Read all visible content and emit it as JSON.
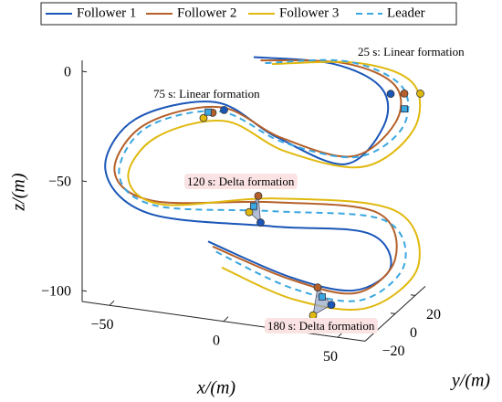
{
  "chart_data": {
    "type": "line",
    "xlabel": "x/(m)",
    "ylabel": "y/(m)",
    "zlabel": "z/(m)",
    "xlim": [
      -62,
      62
    ],
    "ylim": [
      -30,
      30
    ],
    "zlim": [
      -105,
      5
    ],
    "xticks": [
      {
        "value": -50,
        "label": "−50"
      },
      0,
      50
    ],
    "yticks": [
      {
        "value": -20,
        "label": "−20"
      },
      0,
      20
    ],
    "zticks": [
      {
        "value": -100,
        "label": "−100"
      },
      {
        "value": -50,
        "label": "−50"
      },
      0
    ],
    "series": [
      {
        "name": "Follower 1",
        "color": "#1a56b8",
        "x": [
          0,
          35,
          56,
          57,
          40,
          10,
          -17,
          -52,
          -65,
          -46,
          8,
          50,
          60,
          44,
          16,
          -20
        ],
        "y": [
          0,
          0,
          0,
          0,
          0,
          0,
          0,
          0,
          0,
          0,
          0,
          0,
          0,
          0,
          0,
          0
        ],
        "z": [
          3,
          5,
          -3,
          -20,
          -40,
          -32,
          -20,
          -33,
          -58,
          -75,
          -73,
          -70,
          -84,
          -97,
          -95,
          -84
        ]
      },
      {
        "name": "Follower 2",
        "color": "#b5602a",
        "x": [
          3,
          40,
          62,
          62,
          43,
          12,
          -15,
          -48,
          -61,
          -44,
          8,
          54,
          62,
          45,
          16,
          -18
        ],
        "y": [
          0,
          0,
          0,
          0,
          0,
          0,
          0,
          0,
          0,
          0,
          0,
          0,
          0,
          0,
          0,
          0
        ],
        "z": [
          2,
          6,
          -1,
          -18,
          -36,
          -32,
          -22,
          -35,
          -58,
          -69,
          -62,
          -60,
          -80,
          -98,
          -96,
          -86
        ]
      },
      {
        "name": "Follower 3",
        "color": "#e0b90f",
        "x": [
          8,
          46,
          70,
          70,
          48,
          14,
          -13,
          -43,
          -55,
          -40,
          10,
          62,
          72,
          50,
          18,
          -14
        ],
        "y": [
          0,
          0,
          0,
          0,
          0,
          0,
          0,
          0,
          0,
          0,
          0,
          0,
          0,
          0,
          0,
          0
        ],
        "z": [
          1,
          7,
          1,
          -20,
          -40,
          -38,
          -28,
          -40,
          -60,
          -70,
          -60,
          -58,
          -82,
          -104,
          -105,
          -95
        ]
      },
      {
        "name": "Leader",
        "color": "#3aa7e0",
        "dashed": true,
        "x": [
          5,
          41,
          65,
          65,
          45,
          13,
          -15,
          -47,
          -59,
          -43,
          9,
          57,
          66,
          47,
          17,
          -17
        ],
        "y": [
          0,
          0,
          0,
          0,
          0,
          0,
          0,
          0,
          0,
          0,
          0,
          0,
          0,
          0,
          0,
          0
        ],
        "z": [
          1,
          7,
          -1,
          -20,
          -36,
          -34,
          -24,
          -36,
          -59,
          -71,
          -66,
          -63,
          -82,
          -101,
          -100,
          -88
        ]
      }
    ],
    "annotations": [
      {
        "text": "25 s: Linear formation",
        "color": "#1f3a93",
        "formation": "linear",
        "points": [
          [
            60,
            0,
            -5
          ],
          [
            66,
            0,
            -4
          ],
          [
            73,
            0,
            -3
          ],
          [
            66,
            0,
            -11
          ]
        ]
      },
      {
        "text": "75 s: Linear formation",
        "color": "#1f3a93",
        "formation": "linear",
        "points": [
          [
            -13,
            0,
            -23
          ],
          [
            -18,
            0,
            -25
          ],
          [
            -22,
            0,
            -28
          ],
          [
            -20,
            0,
            -25
          ]
        ]
      },
      {
        "text": "120 s: Delta formation",
        "color": "#8a3b17",
        "formation": "delta",
        "points": [
          [
            3,
            0,
            -72
          ],
          [
            2,
            0,
            -60
          ],
          [
            -2,
            0,
            -68
          ],
          [
            0,
            0,
            -65
          ]
        ]
      },
      {
        "text": "180 s: Delta formation",
        "color": "#8a3b17",
        "formation": "delta",
        "points": [
          [
            34,
            0,
            -105
          ],
          [
            28,
            0,
            -98
          ],
          [
            26,
            0,
            -111
          ],
          [
            30,
            0,
            -102
          ]
        ]
      }
    ]
  }
}
